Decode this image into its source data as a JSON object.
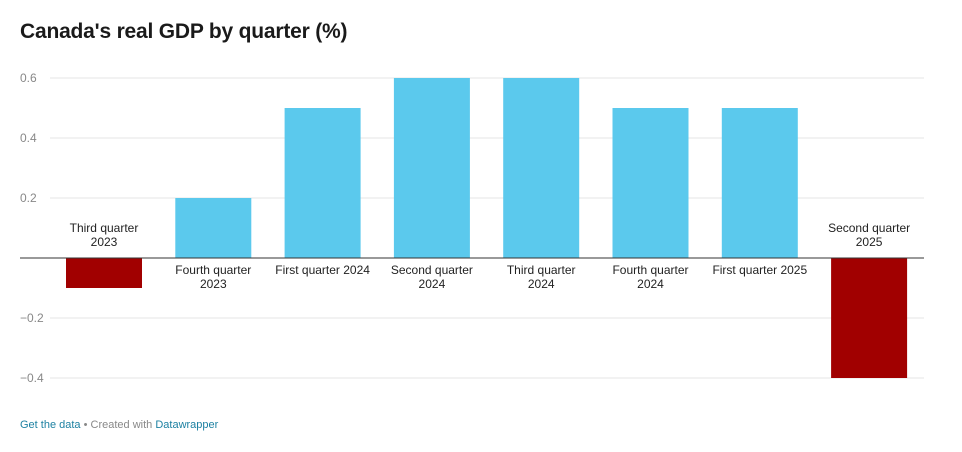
{
  "title": "Canada's real GDP by quarter (%)",
  "footer": {
    "get_data": "Get the data",
    "separator": " • Created with ",
    "datawrapper": "Datawrapper"
  },
  "colors": {
    "positive": "#5bc9ed",
    "negative": "#a10000",
    "grid": "#e5e5e5",
    "baseline": "#333333"
  },
  "chart_data": {
    "type": "bar",
    "title": "Canada's real GDP by quarter (%)",
    "categories": [
      "Third quarter 2023",
      "Fourth quarter 2023",
      "First quarter 2024",
      "Second quarter 2024",
      "Third quarter 2024",
      "Fourth quarter 2024",
      "First quarter 2025",
      "Second quarter 2025"
    ],
    "values": [
      -0.1,
      0.2,
      0.5,
      0.6,
      0.6,
      0.5,
      0.5,
      -0.4
    ],
    "ylim": [
      -0.4,
      0.6
    ],
    "yticks": [
      0.6,
      0.4,
      0.2,
      -0.2,
      -0.4
    ],
    "ytick_labels": [
      "0.6",
      "0.4",
      "0.2",
      "−0.2",
      "−0.4"
    ],
    "grid": true,
    "legend": "none"
  }
}
